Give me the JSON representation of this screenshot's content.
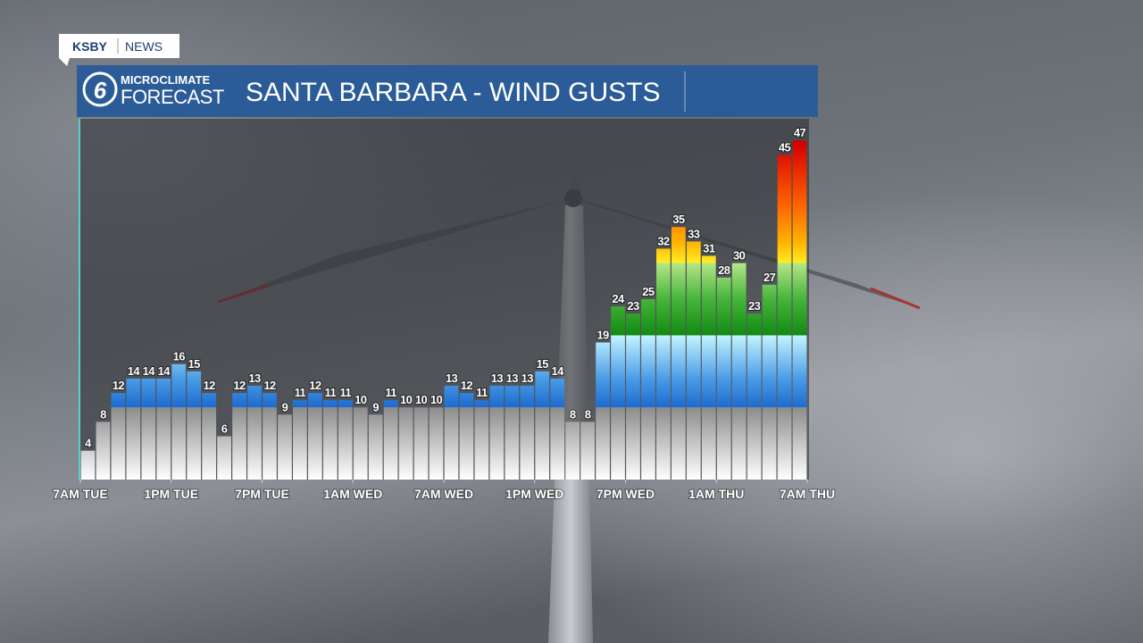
{
  "brand": {
    "station": "KSBY",
    "section": "NEWS"
  },
  "logo": {
    "channel": "6",
    "line1": "MICROCLIMATE",
    "line2": "FORECAST"
  },
  "chart_data": {
    "type": "bar",
    "title": "SANTA BARBARA - WIND GUSTS",
    "values": [
      4,
      8,
      12,
      14,
      14,
      14,
      16,
      15,
      12,
      6,
      12,
      13,
      12,
      9,
      11,
      12,
      11,
      11,
      10,
      9,
      11,
      10,
      10,
      10,
      13,
      12,
      11,
      13,
      13,
      13,
      15,
      14,
      8,
      8,
      19,
      24,
      23,
      25,
      32,
      35,
      33,
      31,
      28,
      30,
      23,
      27,
      45,
      47
    ],
    "xlim": [
      0,
      48
    ],
    "xticks": [
      {
        "value": 0,
        "label": "7AM TUE"
      },
      {
        "value": 6,
        "label": "1PM TUE"
      },
      {
        "value": 12,
        "label": "7PM TUE"
      },
      {
        "value": 18,
        "label": "1AM WED"
      },
      {
        "value": 24,
        "label": "7AM WED"
      },
      {
        "value": 30,
        "label": "1PM WED"
      },
      {
        "value": 36,
        "label": "7PM WED"
      },
      {
        "value": 42,
        "label": "1AM THU"
      },
      {
        "value": 48,
        "label": "7AM THU"
      }
    ],
    "ylim": [
      0,
      50
    ]
  }
}
